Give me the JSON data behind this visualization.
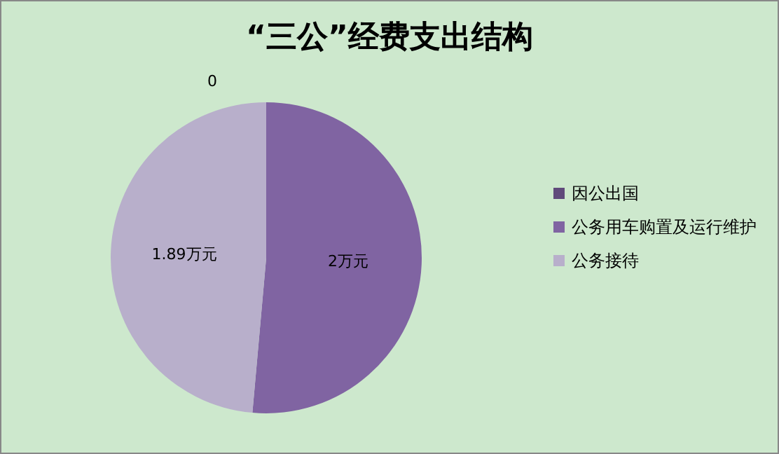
{
  "chart_data": {
    "type": "pie",
    "title": "“三公”经费支出结构",
    "categories": [
      "因公出国",
      "公务用车购置及运行维护",
      "公务接待"
    ],
    "values": [
      0,
      2,
      1.89
    ],
    "value_labels": [
      "0",
      "2万元",
      "1.89万元"
    ],
    "colors": [
      "#604a7b",
      "#8064a2",
      "#b8afcb"
    ],
    "legend": "right"
  }
}
